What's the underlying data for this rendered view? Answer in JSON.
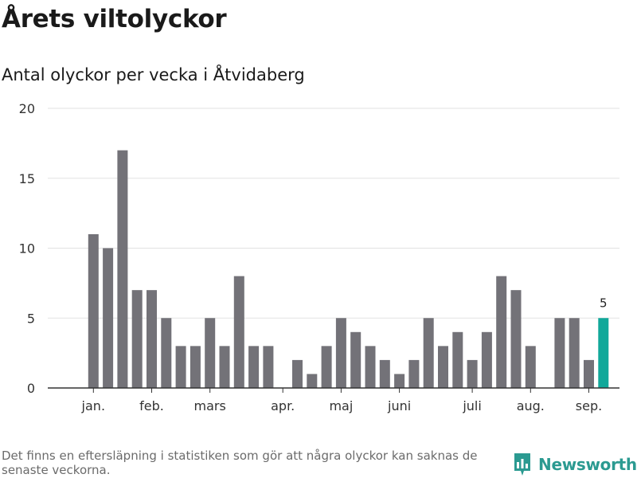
{
  "title": "Årets viltolyckor",
  "subtitle": "Antal olyckor per vecka i Åtvidaberg",
  "footnote": "Det finns en eftersläpning i statistiken som gör att några olyckor kan saknas de senaste veckorna.",
  "brand": {
    "name": "Newsworthy",
    "icon": "newsworthy-logo-icon",
    "color": "#2b9a91"
  },
  "colors": {
    "bar": "#737278",
    "highlight": "#11a89a",
    "grid": "#e2e2e2",
    "axis": "#333333"
  },
  "chart_data": {
    "type": "bar",
    "xlabel": "",
    "ylabel": "",
    "ylim": [
      0,
      20
    ],
    "yticks": [
      0,
      5,
      10,
      15,
      20
    ],
    "grid": true,
    "x_tick_labels": [
      {
        "label": "jan.",
        "week": 2
      },
      {
        "label": "feb.",
        "week": 6
      },
      {
        "label": "mars",
        "week": 10
      },
      {
        "label": "apr.",
        "week": 15
      },
      {
        "label": "maj",
        "week": 19
      },
      {
        "label": "juni",
        "week": 23
      },
      {
        "label": "juli",
        "week": 28
      },
      {
        "label": "aug.",
        "week": 32
      },
      {
        "label": "sep.",
        "week": 36
      }
    ],
    "weeks": [
      1,
      2,
      3,
      4,
      5,
      6,
      7,
      8,
      9,
      10,
      11,
      12,
      13,
      14,
      15,
      16,
      17,
      18,
      19,
      20,
      21,
      22,
      23,
      24,
      25,
      26,
      27,
      28,
      29,
      30,
      31,
      32,
      33,
      34,
      35,
      36,
      37
    ],
    "values": [
      0,
      11,
      10,
      17,
      7,
      7,
      5,
      3,
      3,
      5,
      3,
      8,
      3,
      3,
      0,
      2,
      1,
      3,
      5,
      4,
      3,
      2,
      1,
      2,
      5,
      3,
      4,
      2,
      4,
      8,
      7,
      3,
      0,
      5,
      5,
      2,
      5
    ],
    "highlight_index": 36,
    "highlight_label": "5"
  }
}
